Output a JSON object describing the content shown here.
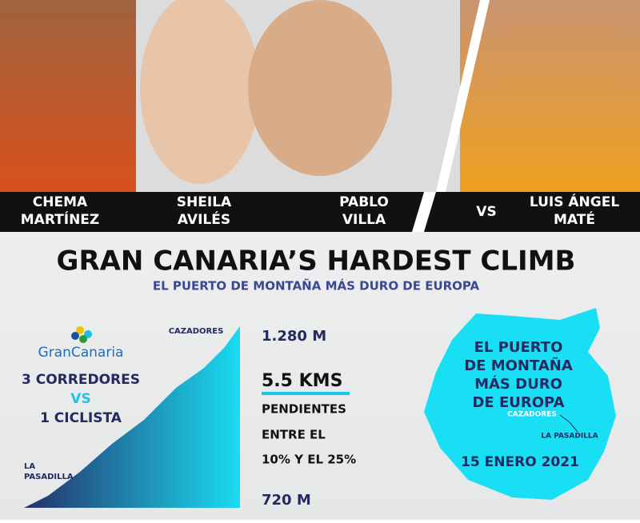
{
  "athletes": [
    {
      "name": [
        "CHEMA",
        "MARTÍNEZ"
      ]
    },
    {
      "name": [
        "SHEILA",
        "AVILÉS"
      ]
    },
    {
      "name": [
        "PABLO",
        "VILLA"
      ]
    },
    {
      "name": [
        "LUIS ÁNGEL",
        "MATÉ"
      ]
    }
  ],
  "versus": "VS",
  "header": {
    "title": "GRAN CANARIA’S HARDEST CLIMB",
    "subtitle": "EL PUERTO DE MONTAÑA MÁS DURO DE EUROPA"
  },
  "left": {
    "logo": "GranCanaria",
    "lines": [
      "3 CORREDORES",
      "VS",
      "1 CICLISTA"
    ]
  },
  "profile": {
    "top_label": "CAZADORES",
    "bottom_label": [
      "LA",
      "PASADILLA"
    ]
  },
  "stats": {
    "top_altitude": "1.280 M",
    "distance": "5.5 KMS",
    "gradient": [
      "PENDIENTES",
      "ENTRE EL",
      "10% Y EL 25%"
    ],
    "bottom_altitude": "720 M"
  },
  "map": {
    "lines": [
      "EL PUERTO",
      "DE MONTAÑA",
      "MÁS DURO",
      "DE EUROPA"
    ],
    "start": "CAZADORES",
    "end": "LA PASADILLA",
    "date": "15 ENERO 2021"
  }
}
